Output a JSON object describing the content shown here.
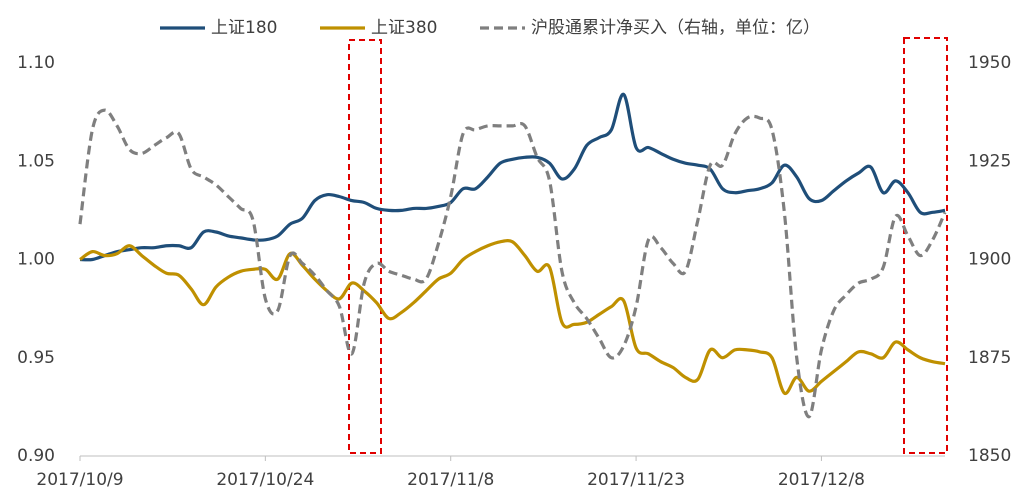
{
  "chart_data": {
    "type": "line",
    "x": [
      "2017/10/9",
      "2017/10/10",
      "2017/10/11",
      "2017/10/12",
      "2017/10/13",
      "2017/10/14",
      "2017/10/15",
      "2017/10/16",
      "2017/10/17",
      "2017/10/18",
      "2017/10/19",
      "2017/10/20",
      "2017/10/21",
      "2017/10/22",
      "2017/10/23",
      "2017/10/24",
      "2017/10/25",
      "2017/10/26",
      "2017/10/27",
      "2017/10/28",
      "2017/10/29",
      "2017/10/30",
      "2017/10/31",
      "2017/11/1",
      "2017/11/2",
      "2017/11/3",
      "2017/11/4",
      "2017/11/5",
      "2017/11/6",
      "2017/11/7",
      "2017/11/8",
      "2017/11/9",
      "2017/11/10",
      "2017/11/11",
      "2017/11/12",
      "2017/11/13",
      "2017/11/14",
      "2017/11/15",
      "2017/11/16",
      "2017/11/17",
      "2017/11/18",
      "2017/11/19",
      "2017/11/20",
      "2017/11/21",
      "2017/11/22",
      "2017/11/23",
      "2017/11/24",
      "2017/11/25",
      "2017/11/26",
      "2017/11/27",
      "2017/11/28",
      "2017/11/29",
      "2017/11/30",
      "2017/12/1",
      "2017/12/2",
      "2017/12/3",
      "2017/12/4",
      "2017/12/5",
      "2017/12/6",
      "2017/12/7",
      "2017/12/8",
      "2017/12/9",
      "2017/12/10",
      "2017/12/11",
      "2017/12/12",
      "2017/12/13",
      "2017/12/14",
      "2017/12/15",
      "2017/12/16",
      "2017/12/17",
      "2017/12/18"
    ],
    "series": [
      {
        "name": "上证180",
        "color": "#1f4e79",
        "values": [
          1.0,
          1.0,
          1.002,
          1.004,
          1.005,
          1.006,
          1.006,
          1.007,
          1.007,
          1.006,
          1.014,
          1.014,
          1.012,
          1.011,
          1.01,
          1.01,
          1.012,
          1.018,
          1.021,
          1.03,
          1.033,
          1.032,
          1.03,
          1.029,
          1.026,
          1.025,
          1.025,
          1.026,
          1.026,
          1.027,
          1.029,
          1.036,
          1.036,
          1.042,
          1.049,
          1.051,
          1.052,
          1.052,
          1.049,
          1.041,
          1.046,
          1.058,
          1.062,
          1.066,
          1.084,
          1.057,
          1.057,
          1.054,
          1.051,
          1.049,
          1.048,
          1.046,
          1.036,
          1.034,
          1.035,
          1.036,
          1.039,
          1.048,
          1.042,
          1.031,
          1.03,
          1.035,
          1.04,
          1.044,
          1.047,
          1.034,
          1.04,
          1.034,
          1.024,
          1.024,
          1.025
        ]
      },
      {
        "name": "上证380",
        "color": "#bf9000",
        "values": [
          1.0,
          1.004,
          1.002,
          1.003,
          1.007,
          1.002,
          0.997,
          0.993,
          0.992,
          0.985,
          0.977,
          0.986,
          0.991,
          0.994,
          0.995,
          0.995,
          0.99,
          1.003,
          0.997,
          0.99,
          0.984,
          0.98,
          0.988,
          0.984,
          0.978,
          0.97,
          0.973,
          0.978,
          0.984,
          0.99,
          0.993,
          1.0,
          1.004,
          1.007,
          1.009,
          1.009,
          1.002,
          0.994,
          0.996,
          0.968,
          0.967,
          0.968,
          0.972,
          0.976,
          0.979,
          0.955,
          0.952,
          0.948,
          0.945,
          0.94,
          0.939,
          0.954,
          0.95,
          0.954,
          0.954,
          0.953,
          0.95,
          0.932,
          0.94,
          0.933,
          0.938,
          0.943,
          0.948,
          0.953,
          0.952,
          0.95,
          0.958,
          0.954,
          0.95,
          0.948,
          0.947
        ]
      },
      {
        "name": "沪股通累计净买入（右轴，单位：亿）",
        "color": "#7f7f7f",
        "dashed": true,
        "axis": "y2",
        "values": [
          1909,
          1933,
          1938,
          1934,
          1928,
          1927,
          1929,
          1931,
          1932,
          1923,
          1921,
          1919,
          1916,
          1913,
          1910,
          1890,
          1887,
          1901,
          1899,
          1896,
          1892,
          1888,
          1876,
          1894,
          1899,
          1897,
          1896,
          1895,
          1895,
          1904,
          1916,
          1932,
          1933,
          1934,
          1934,
          1934,
          1934,
          1926,
          1920,
          1897,
          1889,
          1885,
          1880,
          1875,
          1878,
          1888,
          1905,
          1903,
          1899,
          1897,
          1910,
          1924,
          1924,
          1932,
          1936,
          1936,
          1933,
          1912,
          1875,
          1860,
          1877,
          1887,
          1891,
          1894,
          1895,
          1898,
          1911,
          1906,
          1901,
          1905,
          1912
        ]
      }
    ],
    "xlim": [
      "2017/10/9",
      "2017/12/18"
    ],
    "xticks": [
      "2017/10/9",
      "2017/10/24",
      "2017/11/8",
      "2017/11/23",
      "2017/12/8"
    ],
    "ylim": [
      0.9,
      1.1
    ],
    "yticks": [
      {
        "value": 0.9,
        "label": "0.90"
      },
      0.95,
      {
        "value": 1.0,
        "label": "1.00"
      },
      1.05,
      {
        "value": 1.1,
        "label": "1.10"
      }
    ],
    "y2lim": [
      1850,
      1950
    ],
    "y2ticks": [
      1850,
      1875,
      1900,
      1925,
      1950
    ],
    "grid": false,
    "legend": "top"
  }
}
